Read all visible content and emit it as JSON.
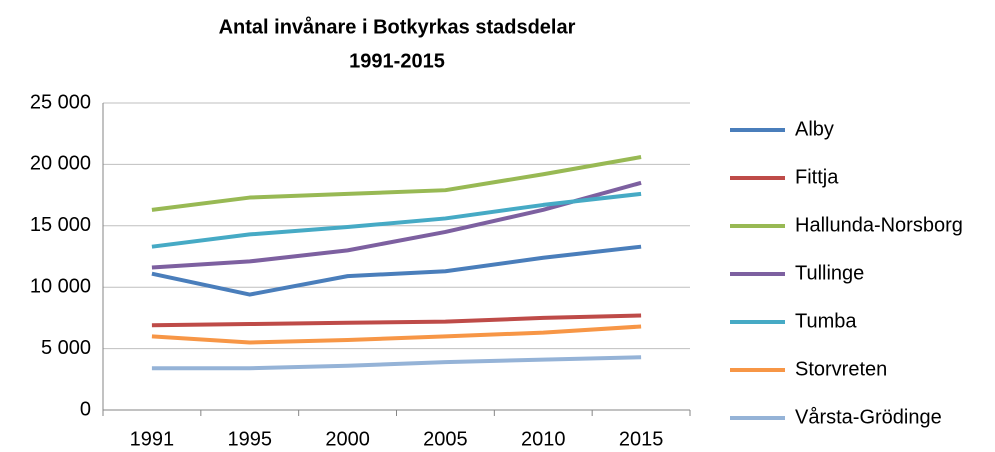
{
  "chart_data": {
    "type": "line",
    "title": [
      "Antal invånare i Botkyrkas stadsdelar",
      "1991-2015"
    ],
    "categories": [
      "1991",
      "1995",
      "2000",
      "2005",
      "2010",
      "2015"
    ],
    "ylim": [
      0,
      25000
    ],
    "yticks": [
      0,
      {
        "value": 5000,
        "label": "5 000"
      },
      {
        "value": 10000,
        "label": "10 000"
      },
      {
        "value": 15000,
        "label": "15 000"
      },
      {
        "value": 20000,
        "label": "20 000"
      },
      {
        "value": 25000,
        "label": "25 000"
      }
    ],
    "grid": true,
    "legend": "right",
    "series": [
      {
        "name": "Alby",
        "color": "#4a7ebb",
        "values": [
          11100,
          9400,
          10900,
          11300,
          12400,
          13300
        ]
      },
      {
        "name": "Fittja",
        "color": "#be4b48",
        "values": [
          6900,
          7000,
          7100,
          7200,
          7500,
          7700
        ]
      },
      {
        "name": "Hallunda-Norsborg",
        "color": "#98b954",
        "values": [
          16300,
          17300,
          17600,
          17900,
          19200,
          20600
        ]
      },
      {
        "name": "Tullinge",
        "color": "#7d60a0",
        "values": [
          11600,
          12100,
          13000,
          14500,
          16300,
          18500
        ]
      },
      {
        "name": "Tumba",
        "color": "#46aac5",
        "values": [
          13300,
          14300,
          14900,
          15600,
          16700,
          17600
        ]
      },
      {
        "name": "Storvreten",
        "color": "#f79646",
        "values": [
          6000,
          5500,
          5700,
          6000,
          6300,
          6800
        ]
      },
      {
        "name": "Vårsta-Grödinge",
        "color": "#95b3d7",
        "values": [
          3400,
          3400,
          3600,
          3900,
          4100,
          4300
        ]
      }
    ]
  }
}
